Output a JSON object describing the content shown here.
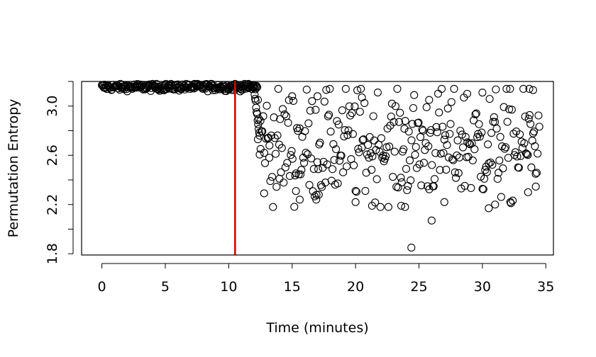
{
  "chart_data": {
    "type": "scatter",
    "xlabel": "Time (minutes)",
    "ylabel": "Permutation Entropy",
    "xlim": [
      -1.6,
      35.6
    ],
    "ylim": [
      1.79,
      3.2
    ],
    "x_ticks": [
      0,
      5,
      10,
      15,
      20,
      25,
      30,
      35
    ],
    "y_ticks": [
      1.8,
      2.2,
      2.6,
      3.0
    ],
    "y_tick_labels": [
      "1.8",
      "2.2",
      "2.6",
      "3.0"
    ],
    "grid": false,
    "legend": "none",
    "point_style": "open-circle",
    "point_color": "#000000",
    "vline": {
      "x": 10.5,
      "color": "#e00000"
    },
    "regimes": [
      {
        "x_range": [
          0.0,
          12.3
        ],
        "y_center": 3.155,
        "y_spread": 0.015,
        "spacing_minutes": 0.05
      },
      {
        "x_range": [
          12.3,
          34.5
        ],
        "y_center": 2.68,
        "y_spread": 0.23,
        "y_min": 2.18,
        "y_max": 3.14,
        "spacing_minutes": 0.07
      }
    ],
    "points": [
      [
        11.0,
        3.16
      ],
      [
        12.3,
        3.05
      ],
      [
        12.5,
        2.88
      ],
      [
        12.8,
        2.62
      ],
      [
        13.2,
        2.58
      ],
      [
        14.0,
        2.41
      ],
      [
        15.3,
        2.31
      ],
      [
        15.6,
        2.24
      ],
      [
        16.9,
        2.24
      ],
      [
        17.1,
        2.28
      ],
      [
        20.0,
        2.22
      ],
      [
        21.3,
        2.19
      ],
      [
        23.6,
        2.19
      ],
      [
        23.9,
        2.18
      ],
      [
        24.4,
        1.85
      ],
      [
        26.0,
        2.07
      ],
      [
        27.0,
        2.22
      ],
      [
        30.5,
        2.17
      ],
      [
        31.0,
        2.2
      ],
      [
        32.2,
        2.22
      ],
      [
        33.6,
        2.3
      ],
      [
        34.2,
        2.45
      ],
      [
        34.0,
        3.13
      ],
      [
        33.7,
        3.14
      ],
      [
        30.0,
        3.11
      ],
      [
        28.8,
        3.1
      ],
      [
        20.5,
        3.07
      ],
      [
        17.0,
        3.08
      ],
      [
        15.0,
        3.08
      ],
      [
        25.8,
        3.05
      ]
    ]
  }
}
